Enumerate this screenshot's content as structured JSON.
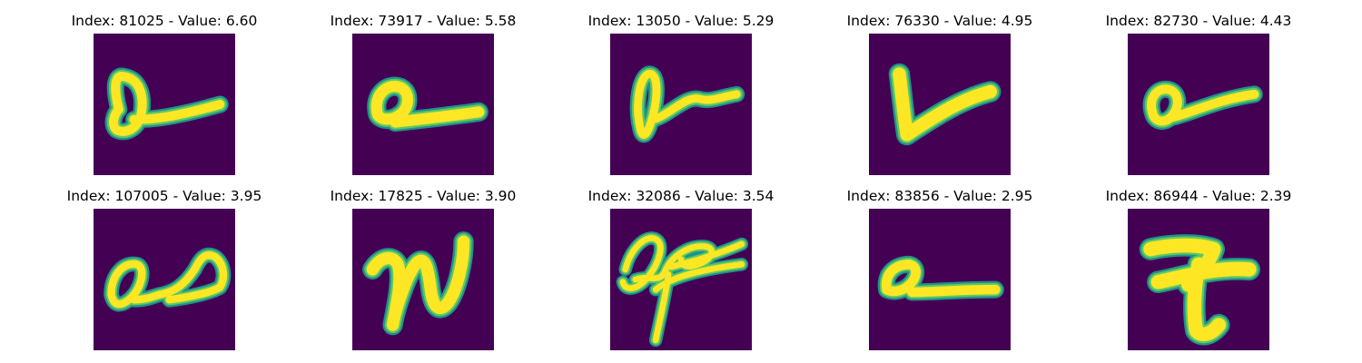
{
  "figure": {
    "background": "#440154",
    "stroke_core": "#fde725",
    "stroke_mid": "#5ec962",
    "stroke_edge": "#21918c"
  },
  "panels": [
    {
      "title": "Index: 81025 - Value: 6.60",
      "glyph": "loop-a-with-tail"
    },
    {
      "title": "Index: 73917 - Value: 5.58",
      "glyph": "small-loop-with-tail"
    },
    {
      "title": "Index: 13050 - Value: 5.29",
      "glyph": "tall-loop-with-tail"
    },
    {
      "title": "Index: 76330 - Value: 4.95",
      "glyph": "check-v"
    },
    {
      "title": "Index: 82730 - Value: 4.43",
      "glyph": "loop-a-with-tail"
    },
    {
      "title": "Index: 107005 - Value: 3.95",
      "glyph": "a-with-curl"
    },
    {
      "title": "Index: 17825 - Value: 3.90",
      "glyph": "n-shape"
    },
    {
      "title": "Index: 32086 - Value: 3.54",
      "glyph": "crossed-scribble"
    },
    {
      "title": "Index: 83856 - Value: 2.95",
      "glyph": "small-loop-with-tail"
    },
    {
      "title": "Index: 86944 - Value: 2.39",
      "glyph": "seven-crossed"
    }
  ]
}
